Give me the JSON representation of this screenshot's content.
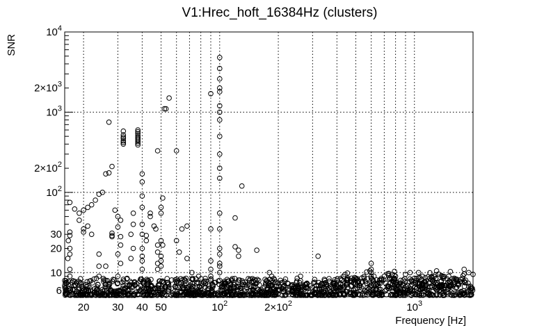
{
  "chart_data": {
    "type": "scatter",
    "title": "V1:Hrec_hoft_16384Hz (clusters)",
    "xlabel": "Frequency [Hz]",
    "ylabel": "SNR",
    "xscale": "log",
    "yscale": "log",
    "xlim": [
      16,
      2000
    ],
    "ylim": [
      5,
      10000
    ],
    "grid": true,
    "x_ticks": [
      {
        "value": 20,
        "label": "20"
      },
      {
        "value": 30,
        "label": "30"
      },
      {
        "value": 40,
        "label": "40"
      },
      {
        "value": 50,
        "label": "50"
      },
      {
        "value": 100,
        "label": "10",
        "exp": "2"
      },
      {
        "value": 200,
        "label": "2×10",
        "exp": "2"
      },
      {
        "value": 1000,
        "label": "10",
        "exp": "3"
      }
    ],
    "y_ticks": [
      {
        "value": 6,
        "label": "6"
      },
      {
        "value": 10,
        "label": "10"
      },
      {
        "value": 20,
        "label": "20"
      },
      {
        "value": 30,
        "label": "30"
      },
      {
        "value": 100,
        "label": "10",
        "exp": "2"
      },
      {
        "value": 200,
        "label": "2×10",
        "exp": "2"
      },
      {
        "value": 1000,
        "label": "10",
        "exp": "3"
      },
      {
        "value": 2000,
        "label": "2×10",
        "exp": "3"
      },
      {
        "value": 10000,
        "label": "10",
        "exp": "4"
      }
    ],
    "series": [
      {
        "name": "clusters",
        "marker": "open-circle",
        "points": [
          [
            100,
            4800
          ],
          [
            100,
            3500
          ],
          [
            100,
            2600
          ],
          [
            100,
            2000
          ],
          [
            100,
            1800
          ],
          [
            100,
            1200
          ],
          [
            100,
            1000
          ],
          [
            100,
            800
          ],
          [
            100,
            500
          ],
          [
            100,
            300
          ],
          [
            100,
            200
          ],
          [
            100,
            150
          ],
          [
            100,
            55
          ],
          [
            100,
            35
          ],
          [
            100,
            20
          ],
          [
            100,
            17
          ],
          [
            100,
            13
          ],
          [
            100,
            12
          ],
          [
            100,
            10
          ],
          [
            100,
            8
          ],
          [
            90,
            1700
          ],
          [
            90,
            35
          ],
          [
            90,
            14
          ],
          [
            90,
            11
          ],
          [
            90,
            9
          ],
          [
            55,
            1500
          ],
          [
            53,
            1100
          ],
          [
            52,
            1100
          ],
          [
            27,
            750
          ],
          [
            32,
            580
          ],
          [
            32,
            520
          ],
          [
            32,
            490
          ],
          [
            32,
            470
          ],
          [
            32,
            440
          ],
          [
            32,
            420
          ],
          [
            32,
            400
          ],
          [
            38,
            600
          ],
          [
            38,
            570
          ],
          [
            38,
            540
          ],
          [
            38,
            510
          ],
          [
            38,
            490
          ],
          [
            38,
            470
          ],
          [
            38,
            450
          ],
          [
            38,
            430
          ],
          [
            38,
            410
          ],
          [
            38,
            390
          ],
          [
            48,
            330
          ],
          [
            60,
            330
          ],
          [
            64,
            35
          ],
          [
            68,
            38
          ],
          [
            130,
            120
          ],
          [
            155,
            19
          ],
          [
            125,
            19
          ],
          [
            125,
            16
          ],
          [
            120,
            48
          ],
          [
            120,
            21
          ],
          [
            26,
            170
          ],
          [
            27,
            175
          ],
          [
            28,
            210
          ],
          [
            24,
            95
          ],
          [
            25,
            100
          ],
          [
            23,
            80
          ],
          [
            22,
            70
          ],
          [
            21,
            65
          ],
          [
            20,
            60
          ],
          [
            19,
            55
          ],
          [
            17,
            75
          ],
          [
            18,
            62
          ],
          [
            17,
            32
          ],
          [
            17,
            29
          ],
          [
            16.7,
            25
          ],
          [
            17,
            20
          ],
          [
            17,
            17
          ],
          [
            16.6,
            15
          ],
          [
            17,
            11
          ],
          [
            17,
            9
          ],
          [
            19,
            45
          ],
          [
            20,
            35
          ],
          [
            21,
            38
          ],
          [
            22,
            30
          ],
          [
            20,
            32
          ],
          [
            30,
            50
          ],
          [
            31,
            45
          ],
          [
            30,
            37
          ],
          [
            31,
            28
          ],
          [
            31,
            22
          ],
          [
            30,
            17
          ],
          [
            31,
            13
          ],
          [
            30,
            9
          ],
          [
            29,
            60
          ],
          [
            28,
            31
          ],
          [
            28,
            29
          ],
          [
            28,
            28
          ],
          [
            24,
            17
          ],
          [
            24,
            12
          ],
          [
            24,
            9
          ],
          [
            26,
            8
          ],
          [
            26,
            12
          ],
          [
            40,
            170
          ],
          [
            40,
            135
          ],
          [
            40,
            90
          ],
          [
            40,
            65
          ],
          [
            40,
            40
          ],
          [
            40,
            30
          ],
          [
            40,
            20
          ],
          [
            40,
            16
          ],
          [
            40,
            14
          ],
          [
            40,
            11
          ],
          [
            44,
            55
          ],
          [
            44,
            50
          ],
          [
            46,
            38
          ],
          [
            47,
            35
          ],
          [
            48,
            22
          ],
          [
            48,
            18
          ],
          [
            48,
            13
          ],
          [
            48,
            11
          ],
          [
            50,
            65
          ],
          [
            50,
            55
          ],
          [
            51,
            85
          ],
          [
            50,
            25
          ],
          [
            51,
            22
          ],
          [
            50,
            16
          ],
          [
            50,
            14
          ],
          [
            50,
            12
          ],
          [
            42,
            29
          ],
          [
            42,
            25
          ],
          [
            36,
            55
          ],
          [
            36,
            40
          ],
          [
            35,
            30
          ],
          [
            36,
            20
          ],
          [
            35,
            15
          ],
          [
            60,
            25
          ],
          [
            62,
            18
          ],
          [
            68,
            15
          ],
          [
            72,
            10
          ],
          [
            78,
            9
          ],
          [
            85,
            7.8
          ],
          [
            95,
            7.5
          ],
          [
            250,
            8.5
          ],
          [
            320,
            16
          ],
          [
            260,
            9
          ],
          [
            185,
            9
          ],
          [
            180,
            10
          ],
          [
            210,
            7.5
          ],
          [
            160,
            7
          ],
          [
            600,
            13
          ],
          [
            600,
            11
          ],
          [
            600,
            10
          ],
          [
            600,
            9
          ],
          [
            600,
            8.5
          ],
          [
            590,
            10.5
          ],
          [
            620,
            9
          ],
          [
            800,
            9
          ],
          [
            900,
            9.5
          ],
          [
            950,
            10
          ],
          [
            1050,
            10
          ],
          [
            1100,
            9
          ],
          [
            1200,
            8.5
          ],
          [
            1300,
            10.5
          ],
          [
            1500,
            9
          ],
          [
            1800,
            11
          ],
          [
            1900,
            10
          ],
          [
            2000,
            9.5
          ],
          [
            700,
            9
          ],
          [
            750,
            8.5
          ],
          [
            850,
            8
          ],
          [
            1000,
            8.5
          ],
          [
            1400,
            9
          ],
          [
            1600,
            8.5
          ],
          [
            450,
            8
          ],
          [
            500,
            8.5
          ],
          [
            350,
            7.5
          ],
          [
            400,
            8
          ]
        ]
      }
    ],
    "noise_floor": {
      "x_range": [
        16,
        2000
      ],
      "snr_range": [
        5.2,
        8.5
      ]
    }
  }
}
